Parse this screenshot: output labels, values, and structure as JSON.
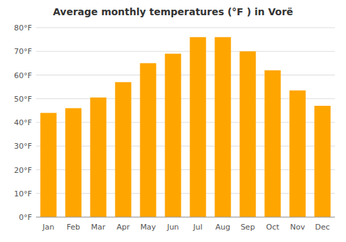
{
  "chart_data": {
    "type": "bar",
    "title": "Average monthly temperatures (°F ) in Vorë",
    "categories": [
      "Jan",
      "Feb",
      "Mar",
      "Apr",
      "May",
      "Jun",
      "Jul",
      "Aug",
      "Sep",
      "Oct",
      "Nov",
      "Dec"
    ],
    "values": [
      44,
      46,
      50.5,
      57,
      65,
      69,
      76,
      76,
      70,
      62,
      53.5,
      47
    ],
    "color": "#FFA500",
    "ylim": [
      0,
      80
    ],
    "yticks": [
      {
        "value": 0,
        "label": "0°F"
      },
      {
        "value": 10,
        "label": "10°F"
      },
      {
        "value": 20,
        "label": "20°F"
      },
      {
        "value": 30,
        "label": "30°F"
      },
      {
        "value": 40,
        "label": "40°F"
      },
      {
        "value": 50,
        "label": "50°F"
      },
      {
        "value": 60,
        "label": "60°F"
      },
      {
        "value": 70,
        "label": "70°F"
      },
      {
        "value": 80,
        "label": "80°F"
      }
    ],
    "grid": true
  }
}
